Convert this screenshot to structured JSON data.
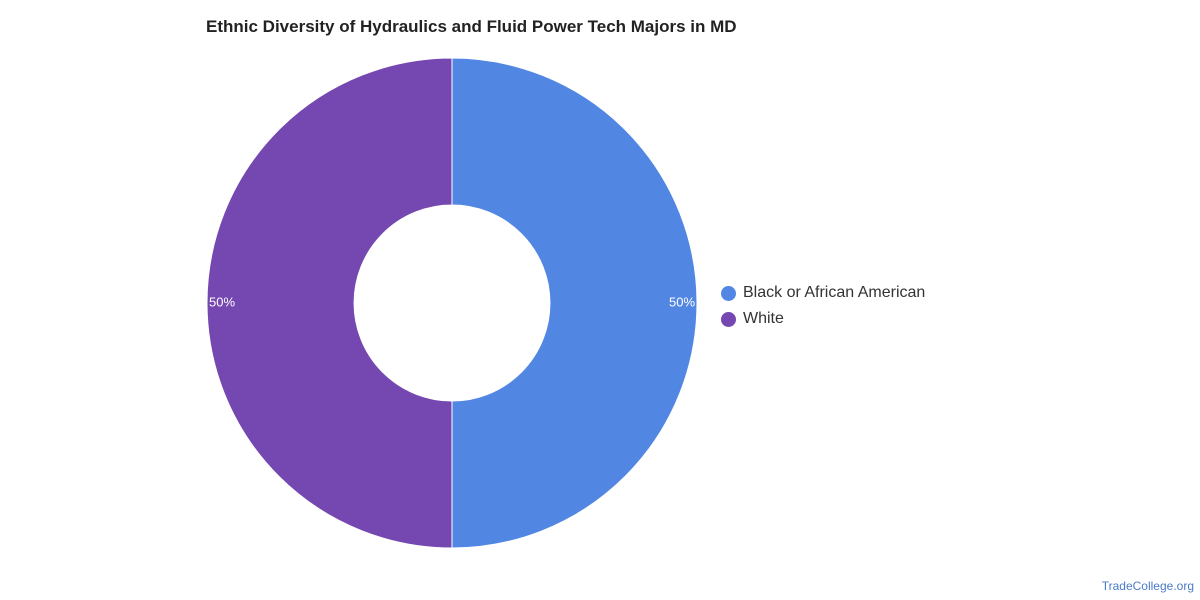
{
  "chart_data": {
    "type": "pie",
    "variant": "donut",
    "title": "Ethnic Diversity of Hydraulics and Fluid Power Tech Majors in MD",
    "categories": [
      "Black or African American",
      "White"
    ],
    "values": [
      50,
      50
    ],
    "value_labels": [
      "50%",
      "50%"
    ],
    "colors": [
      "#5286e3",
      "#7547b0"
    ],
    "legend_position": "right"
  },
  "watermark": "TradeCollege.org"
}
